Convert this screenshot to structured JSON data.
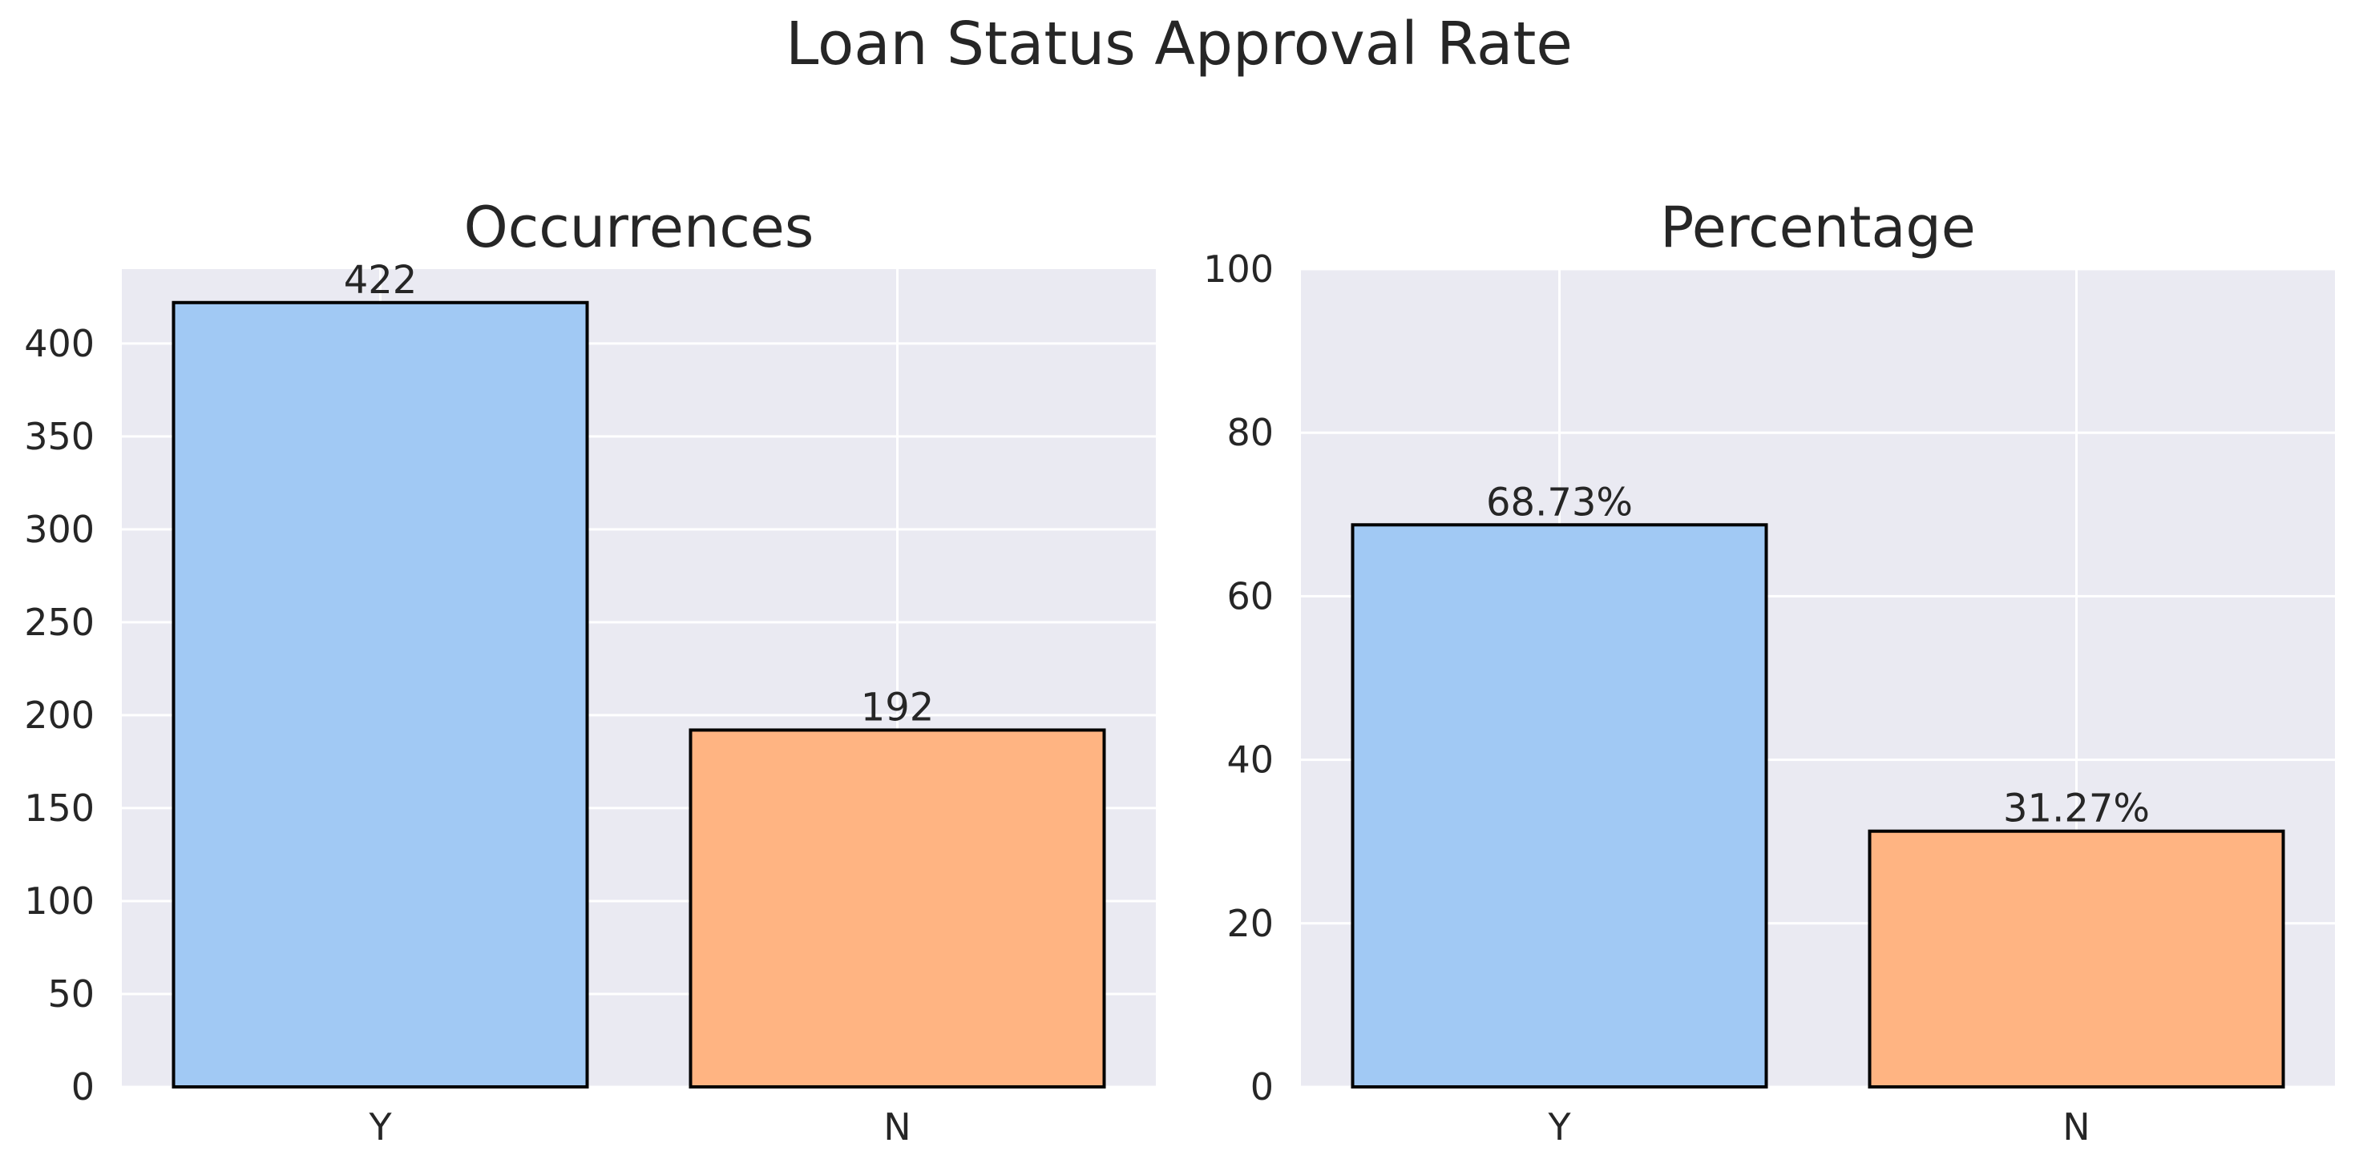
{
  "colors": {
    "Y": "#a1c9f4",
    "N": "#ffb482",
    "axes_bg": "#eaeaf2",
    "grid": "#ffffff",
    "text": "#262626"
  },
  "chart_data": {
    "title": "Loan Status Approval Rate",
    "charts": [
      {
        "type": "bar",
        "title": "Occurrences",
        "categories": [
          "Y",
          "N"
        ],
        "values": [
          422,
          192
        ],
        "value_labels": [
          "422",
          "192"
        ],
        "ylim": [
          0,
          440
        ],
        "yticks": [
          0,
          50,
          100,
          150,
          200,
          250,
          300,
          350,
          400
        ],
        "grid": true,
        "bar_colors": [
          "#a1c9f4",
          "#ffb482"
        ]
      },
      {
        "type": "bar",
        "title": "Percentage",
        "categories": [
          "Y",
          "N"
        ],
        "values": [
          68.73,
          31.27
        ],
        "value_labels": [
          "68.73%",
          "31.27%"
        ],
        "ylim": [
          0,
          100
        ],
        "yticks": [
          0,
          20,
          40,
          60,
          80,
          100
        ],
        "grid": true,
        "bar_colors": [
          "#a1c9f4",
          "#ffb482"
        ]
      }
    ]
  }
}
